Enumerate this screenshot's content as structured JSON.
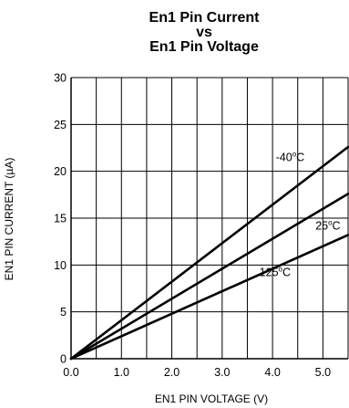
{
  "chart_data": {
    "type": "line",
    "title": [
      "En1 Pin Current",
      "vs",
      "En1 Pin Voltage"
    ],
    "xlabel": "EN1 PIN VOLTAGE (V)",
    "ylabel": "EN1 PIN CURRENT (µA)",
    "xlim": [
      0,
      5.5
    ],
    "ylim": [
      0,
      30
    ],
    "xticks": [
      "0.0",
      "1.0",
      "2.0",
      "3.0",
      "4.0",
      "5.0"
    ],
    "yticks": [
      "0",
      "5",
      "10",
      "15",
      "20",
      "25",
      "30"
    ],
    "grid": true,
    "series": [
      {
        "name": "-40°C",
        "x": [
          0,
          5.5
        ],
        "y": [
          0,
          22.6
        ]
      },
      {
        "name": "25°C",
        "x": [
          0,
          5.5
        ],
        "y": [
          0,
          17.6
        ]
      },
      {
        "name": "125°C",
        "x": [
          0,
          5.5
        ],
        "y": [
          0,
          13.2
        ]
      }
    ],
    "series_labels": [
      {
        "main": "-40",
        "sup": "o",
        "unit": "C",
        "x": 4.35,
        "y": 21.1
      },
      {
        "main": "25",
        "sup": "o",
        "unit": "C",
        "x": 5.1,
        "y": 13.8
      },
      {
        "main": "125",
        "sup": "o",
        "unit": "C",
        "x": 4.05,
        "y": 8.8
      }
    ],
    "colors": {
      "line": "#000000",
      "grid": "#000000",
      "background": "#ffffff"
    }
  }
}
